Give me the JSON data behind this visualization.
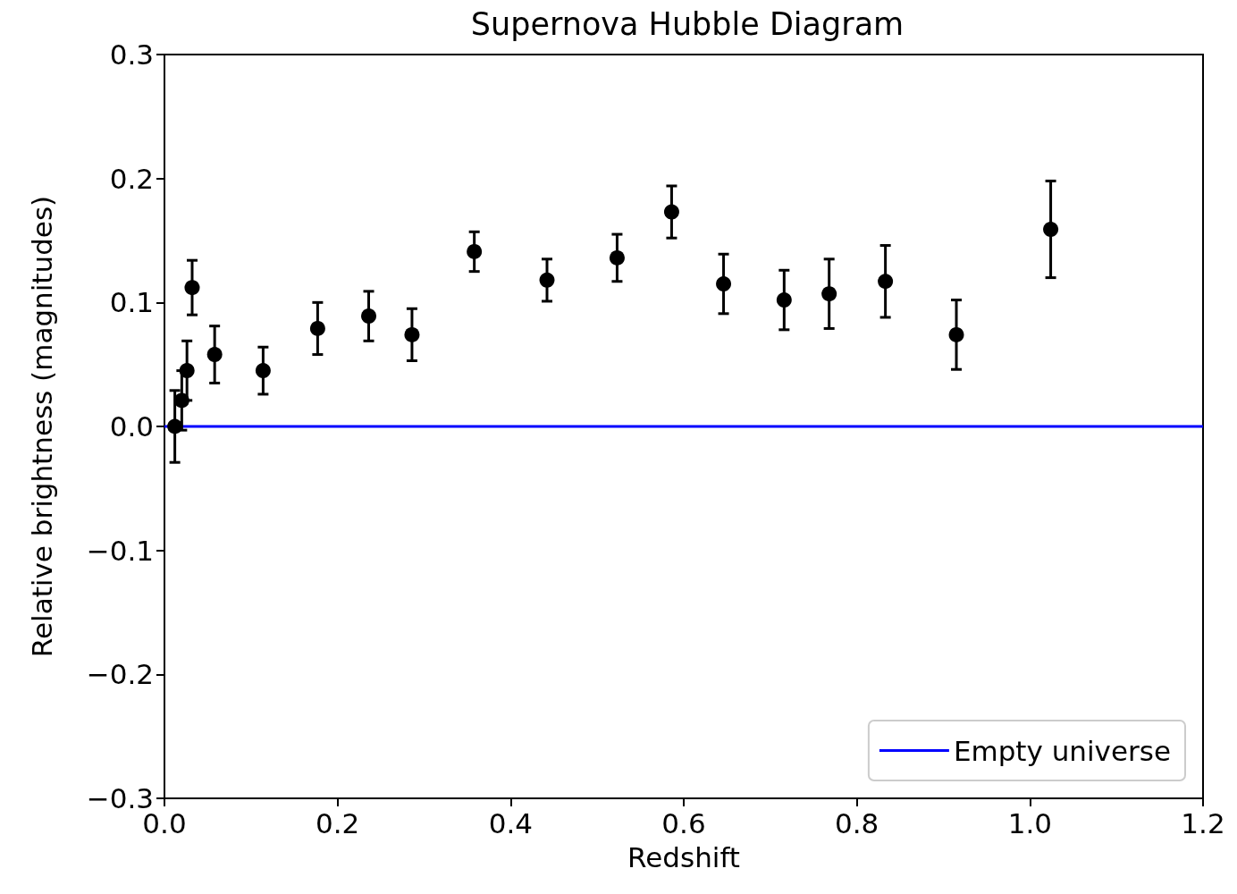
{
  "chart_data": {
    "type": "scatter",
    "title": "Supernova Hubble Diagram",
    "xlabel": "Redshift",
    "ylabel": "Relative brightness (magnitudes)",
    "xlim": [
      0,
      1.2
    ],
    "ylim": [
      -0.3,
      0.3
    ],
    "xticks": [
      {
        "value": 0,
        "label": "0.0"
      },
      {
        "value": 0.2,
        "label": "0.2"
      },
      {
        "value": 0.4,
        "label": "0.4"
      },
      {
        "value": 0.6,
        "label": "0.6"
      },
      {
        "value": 0.8,
        "label": "0.8"
      },
      {
        "value": 1.0,
        "label": "1.0"
      },
      {
        "value": 1.2,
        "label": "1.2"
      }
    ],
    "yticks": [
      {
        "value": -0.3,
        "label": "−0.3"
      },
      {
        "value": -0.2,
        "label": "−0.2"
      },
      {
        "value": -0.1,
        "label": "−0.1"
      },
      {
        "value": 0,
        "label": "0.0"
      },
      {
        "value": 0.1,
        "label": "0.1"
      },
      {
        "value": 0.2,
        "label": "0.2"
      },
      {
        "value": 0.3,
        "label": "0.3"
      }
    ],
    "grid": false,
    "legend": "bottom right",
    "marker": "circle",
    "series": [
      {
        "color": "#000000",
        "x": [
          0.012,
          0.02,
          0.026,
          0.032,
          0.058,
          0.114,
          0.177,
          0.236,
          0.286,
          0.358,
          0.442,
          0.523,
          0.586,
          0.646,
          0.716,
          0.768,
          0.833,
          0.915,
          1.024
        ],
        "values": [
          0.0,
          0.021,
          0.045,
          0.112,
          0.058,
          0.045,
          0.079,
          0.089,
          0.074,
          0.141,
          0.118,
          0.136,
          0.173,
          0.115,
          0.102,
          0.107,
          0.117,
          0.074,
          0.159
        ],
        "errors": [
          0.029,
          0.024,
          0.024,
          0.022,
          0.023,
          0.019,
          0.021,
          0.02,
          0.021,
          0.016,
          0.017,
          0.019,
          0.021,
          0.024,
          0.024,
          0.028,
          0.029,
          0.028,
          0.039
        ]
      },
      {
        "type": "line",
        "name": "Empty universe",
        "color": "#0000ff",
        "x": [
          0,
          1.2
        ],
        "values": [
          0,
          0
        ],
        "marker": "none",
        "line_style": "solid"
      }
    ]
  }
}
